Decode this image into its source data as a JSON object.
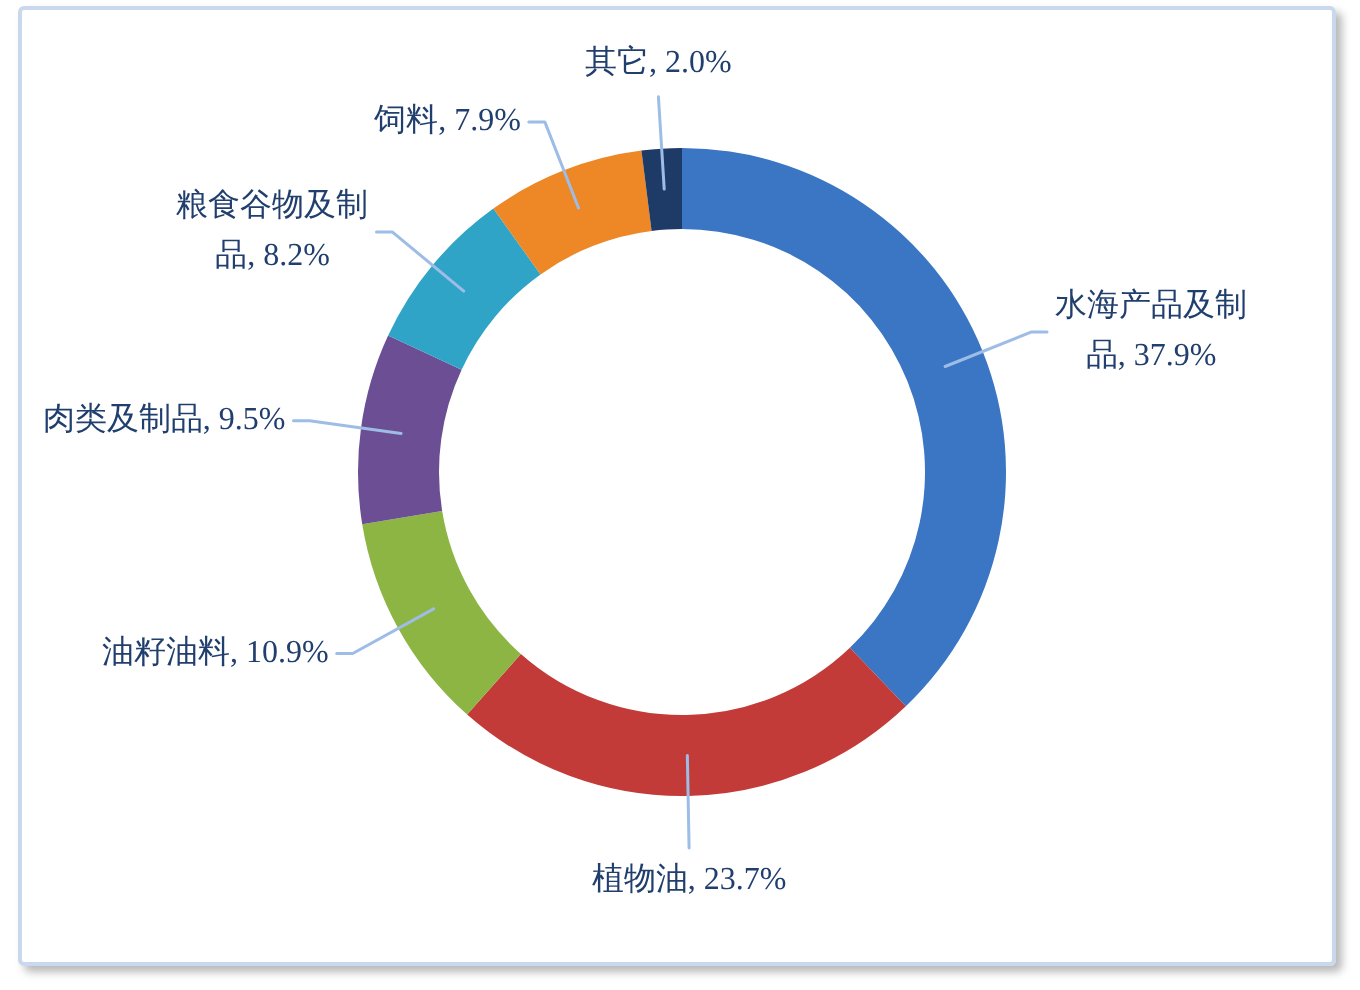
{
  "chart_data": {
    "type": "donut",
    "categories": [
      "水海产品及制品",
      "植物油",
      "油籽油料",
      "肉类及制品",
      "粮食谷物及制品",
      "饲料",
      "其它"
    ],
    "values": [
      37.9,
      23.7,
      10.9,
      9.5,
      8.2,
      7.9,
      2.0
    ],
    "colors": [
      "#3a76c4",
      "#c23b38",
      "#8db543",
      "#6b4e93",
      "#30a4c7",
      "#ee8725",
      "#1e3b68"
    ],
    "value_labels": [
      "37.9%",
      "23.7%",
      "10.9%",
      "9.5%",
      "8.2%",
      "7.9%",
      "2.0%"
    ]
  }
}
